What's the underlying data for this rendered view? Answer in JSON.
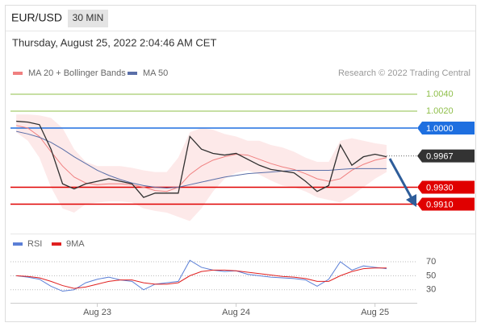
{
  "chart_data": {
    "type": "line",
    "title": "EUR/USD",
    "timeframe": "30 MIN",
    "subtitle": "Thursday, August 25, 2022 2:04:46 AM CET",
    "credit": "Research © 2022 Trading Central",
    "x": [
      -14,
      -12,
      -10,
      -8,
      -6,
      -4,
      -2,
      0,
      2,
      4,
      6,
      8,
      10,
      12,
      14,
      16,
      18,
      20,
      22,
      24,
      26,
      28,
      30,
      32,
      34,
      36,
      38,
      40,
      42,
      44,
      46,
      48,
      50
    ],
    "xlim": [
      -15,
      55.3
    ],
    "xticks": [
      {
        "value": 0,
        "label": "Aug 23"
      },
      {
        "value": 24,
        "label": "Aug 24"
      },
      {
        "value": 48,
        "label": "Aug 25"
      }
    ],
    "ylim": [
      0.98752,
      1.00514
    ],
    "price": {
      "color": "#2f2f2f",
      "values": [
        1.0008,
        1.0007,
        1.0004,
        0.9975,
        0.9934,
        0.9928,
        0.9934,
        0.9937,
        0.994,
        0.9937,
        0.9934,
        0.9918,
        0.9923,
        0.9923,
        0.9923,
        0.999,
        0.9975,
        0.997,
        0.9968,
        0.997,
        0.9963,
        0.9956,
        0.9951,
        0.9949,
        0.9947,
        0.9937,
        0.9925,
        0.9932,
        0.998,
        0.9956,
        0.9966,
        0.9969,
        0.9966
      ]
    },
    "series": [
      {
        "name": "MA 20 + Bollinger Bands",
        "color": "#f08080",
        "band_color": "#fde3e3",
        "values": [
          1.0003,
          1.0,
          0.999,
          0.9972,
          0.9955,
          0.9942,
          0.9935,
          0.9933,
          0.9934,
          0.9934,
          0.9933,
          0.993,
          0.9926,
          0.9925,
          0.993,
          0.9945,
          0.9955,
          0.9962,
          0.9966,
          0.9969,
          0.9968,
          0.9963,
          0.9958,
          0.9954,
          0.9951,
          0.9946,
          0.994,
          0.9937,
          0.994,
          0.995,
          0.9957,
          0.9962,
          0.9965
        ],
        "upper": [
          1.0016,
          1.0016,
          1.0015,
          1.0012,
          1.0,
          0.9975,
          0.996,
          0.9955,
          0.9955,
          0.9955,
          0.9953,
          0.995,
          0.9948,
          0.9948,
          0.9965,
          0.9995,
          1.0,
          0.9998,
          0.9993,
          0.999,
          0.9985,
          0.9985,
          0.998,
          0.9977,
          0.9972,
          0.9965,
          0.996,
          0.996,
          0.9985,
          0.9988,
          0.9985,
          0.9982,
          0.998
        ],
        "lower": [
          0.9995,
          0.9985,
          0.9965,
          0.993,
          0.9905,
          0.99,
          0.991,
          0.9912,
          0.9913,
          0.9913,
          0.9912,
          0.9905,
          0.9902,
          0.99,
          0.9895,
          0.989,
          0.9905,
          0.9925,
          0.994,
          0.9947,
          0.995,
          0.9945,
          0.9938,
          0.9932,
          0.993,
          0.9925,
          0.9918,
          0.9915,
          0.9912,
          0.992,
          0.993,
          0.994,
          0.9948
        ]
      },
      {
        "name": "MA 50",
        "color": "#5a6fa8",
        "values": [
          0.9996,
          0.9993,
          0.9989,
          0.9983,
          0.9975,
          0.9966,
          0.9958,
          0.995,
          0.9944,
          0.9939,
          0.9935,
          0.9932,
          0.993,
          0.9929,
          0.993,
          0.9933,
          0.9936,
          0.9939,
          0.9942,
          0.9944,
          0.9946,
          0.9947,
          0.9948,
          0.9949,
          0.995,
          0.995,
          0.995,
          0.995,
          0.9951,
          0.9952,
          0.9952,
          0.9952,
          0.9952
        ]
      }
    ],
    "levels": [
      {
        "value": 1.004,
        "label": "1.0040",
        "color": "#8fbf4a",
        "badge": false
      },
      {
        "value": 1.002,
        "label": "1.0020",
        "color": "#8fbf4a",
        "badge": false
      },
      {
        "value": 1.0,
        "label": "1.0000",
        "color": "#1e6fe0",
        "badge": true
      },
      {
        "value": 0.993,
        "label": "0.9930",
        "color": "#e00000",
        "badge": true
      },
      {
        "value": 0.991,
        "label": "0.9910",
        "color": "#e00000",
        "badge": true
      }
    ],
    "current": {
      "value": 0.9967,
      "label": "0.9967",
      "color": "#333333"
    },
    "rsi": {
      "ylim": [
        16,
        78
      ],
      "yticks": [
        70,
        50,
        30
      ],
      "series": [
        {
          "name": "RSI",
          "color": "#5b7fd6",
          "values": [
            50,
            48,
            45,
            35,
            28,
            30,
            40,
            45,
            48,
            44,
            42,
            30,
            38,
            40,
            42,
            72,
            62,
            58,
            56,
            57,
            52,
            50,
            48,
            47,
            46,
            44,
            35,
            45,
            70,
            58,
            64,
            62,
            60
          ]
        },
        {
          "name": "9MA",
          "color": "#e02020",
          "values": [
            50,
            49,
            47,
            42,
            36,
            32,
            34,
            38,
            42,
            44,
            44,
            40,
            38,
            38,
            40,
            50,
            56,
            58,
            58,
            57,
            55,
            53,
            51,
            49,
            48,
            46,
            42,
            42,
            50,
            56,
            60,
            61,
            61
          ]
        }
      ]
    }
  }
}
